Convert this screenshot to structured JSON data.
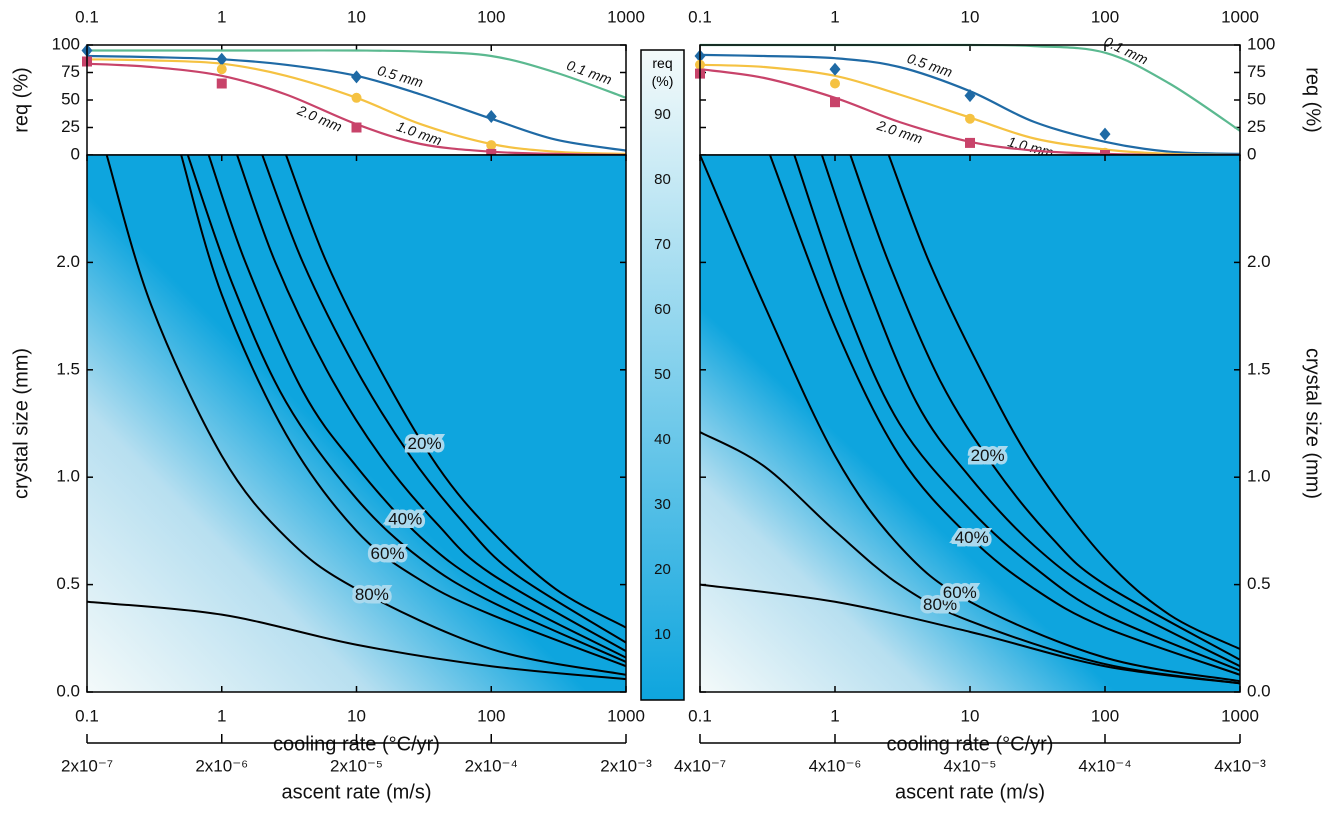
{
  "chart_data": [
    {
      "type": "line",
      "x_log": true,
      "xlim": [
        0.1,
        1000
      ],
      "xticks": [
        0.1,
        1,
        10,
        100,
        1000
      ],
      "ylabel": "req (%)",
      "ylim": [
        0,
        100
      ],
      "yticks": [
        0,
        25,
        50,
        75,
        100
      ],
      "x": [
        0.1,
        0.3,
        1,
        3,
        10,
        30,
        100,
        300,
        1000
      ],
      "point_x": [
        0.1,
        1,
        10,
        100
      ],
      "series": [
        {
          "name": "0.1 mm",
          "color": "#5bb990",
          "values": [
            95,
            95,
            95,
            95,
            95,
            94,
            90,
            75,
            52
          ]
        },
        {
          "name": "0.5 mm",
          "color": "#1f6aa5",
          "marker": "diamond",
          "values": [
            90,
            89,
            87,
            82,
            72,
            55,
            33,
            14,
            4
          ],
          "point_values": [
            95,
            87,
            71,
            35
          ]
        },
        {
          "name": "1.0 mm",
          "color": "#f5c242",
          "marker": "circle",
          "values": [
            87,
            86,
            83,
            72,
            52,
            28,
            10,
            3,
            1
          ],
          "point_values": [
            85,
            78,
            52,
            9
          ]
        },
        {
          "name": "2.0 mm",
          "color": "#c8436a",
          "marker": "square",
          "values": [
            83,
            80,
            72,
            55,
            28,
            10,
            3,
            1,
            0
          ],
          "point_values": [
            85,
            65,
            25,
            1
          ]
        }
      ]
    },
    {
      "type": "contour",
      "x_log": true,
      "xlabel": "cooling rate (°C/yr)",
      "xlim": [
        0.1,
        1000
      ],
      "xticks": [
        0.1,
        1,
        10,
        100,
        1000
      ],
      "ylabel": "crystal size (mm)",
      "ylim": [
        0,
        2.5
      ],
      "yticks": [
        {
          "value": 0,
          "label": "0.0"
        },
        0.5,
        {
          "value": 1,
          "label": "1.0"
        },
        1.5,
        {
          "value": 2,
          "label": "2.0"
        }
      ],
      "x2label": "ascent rate (m/s)",
      "x2lim": [
        2e-07,
        0.002
      ],
      "x2ticks": [
        {
          "value": 2e-07,
          "label": "2x10⁻⁷"
        },
        {
          "value": 2e-06,
          "label": "2x10⁻⁶"
        },
        {
          "value": 2e-05,
          "label": "2x10⁻⁵"
        },
        {
          "value": 0.0002,
          "label": "2x10⁻⁴"
        },
        {
          "value": 0.002,
          "label": "2x10⁻³"
        }
      ],
      "contours": [
        {
          "x": [
            0.1,
            1,
            10,
            100,
            1000
          ],
          "y": [
            0.42,
            0.36,
            0.22,
            0.12,
            0.06
          ]
        },
        {
          "label": "80%",
          "x": [
            0.14,
            0.3,
            1,
            3,
            10,
            100,
            1000
          ],
          "y": [
            2.5,
            1.8,
            1.1,
            0.72,
            0.48,
            0.2,
            0.08
          ]
        },
        {
          "label": "60%",
          "x": [
            0.5,
            1,
            3,
            10,
            30,
            100,
            1000
          ],
          "y": [
            2.5,
            1.85,
            1.2,
            0.75,
            0.52,
            0.36,
            0.12
          ]
        },
        {
          "x": [
            0.56,
            1.2,
            3,
            10,
            30,
            100,
            1000
          ],
          "y": [
            2.5,
            1.9,
            1.35,
            0.9,
            0.62,
            0.42,
            0.14
          ]
        },
        {
          "label": "40%",
          "x": [
            0.8,
            1.5,
            4,
            10,
            30,
            100,
            1000
          ],
          "y": [
            2.5,
            2.0,
            1.4,
            1.05,
            0.72,
            0.48,
            0.16
          ]
        },
        {
          "x": [
            1.3,
            2.5,
            6,
            15,
            40,
            100,
            1000
          ],
          "y": [
            2.5,
            2.0,
            1.5,
            1.1,
            0.78,
            0.55,
            0.19
          ]
        },
        {
          "x": [
            2,
            4,
            10,
            25,
            60,
            150,
            1000
          ],
          "y": [
            2.5,
            2.0,
            1.5,
            1.1,
            0.8,
            0.55,
            0.23
          ]
        },
        {
          "label": "20%",
          "x": [
            3,
            6,
            15,
            40,
            100,
            300,
            1000
          ],
          "y": [
            2.5,
            2.0,
            1.5,
            1.05,
            0.75,
            0.48,
            0.3
          ]
        }
      ]
    },
    {
      "type": "line",
      "x_log": true,
      "xlim": [
        0.1,
        1000
      ],
      "xticks": [
        0.1,
        1,
        10,
        100,
        1000
      ],
      "ylabel": "req (%)",
      "ylim": [
        0,
        100
      ],
      "yticks": [
        0,
        25,
        50,
        75,
        100
      ],
      "x": [
        0.1,
        0.3,
        1,
        3,
        10,
        30,
        100,
        300,
        1000
      ],
      "point_x": [
        0.1,
        1,
        10,
        100
      ],
      "series": [
        {
          "name": "0.1 mm",
          "color": "#5bb990",
          "values": [
            100,
            100,
            100,
            100,
            100,
            99,
            93,
            65,
            22
          ]
        },
        {
          "name": "0.5 mm",
          "color": "#1f6aa5",
          "marker": "diamond",
          "values": [
            91,
            90,
            88,
            80,
            58,
            30,
            12,
            3,
            1
          ],
          "point_values": [
            90,
            78,
            54,
            19
          ]
        },
        {
          "name": "1.0 mm",
          "color": "#f5c242",
          "marker": "circle",
          "values": [
            82,
            80,
            72,
            55,
            34,
            15,
            5,
            1,
            0
          ],
          "point_values": [
            82,
            65,
            33,
            2
          ]
        },
        {
          "name": "2.0 mm",
          "color": "#c8436a",
          "marker": "square",
          "values": [
            78,
            70,
            52,
            30,
            12,
            4,
            1,
            0,
            0
          ],
          "point_values": [
            74,
            48,
            11,
            0
          ]
        }
      ]
    },
    {
      "type": "contour",
      "x_log": true,
      "xlabel": "cooling rate (°C/yr)",
      "xlim": [
        0.1,
        1000
      ],
      "xticks": [
        0.1,
        1,
        10,
        100,
        1000
      ],
      "ylabel": "crystal size (mm)",
      "ylim": [
        0,
        2.5
      ],
      "yticks": [
        {
          "value": 0,
          "label": "0.0"
        },
        0.5,
        {
          "value": 1,
          "label": "1.0"
        },
        1.5,
        {
          "value": 2,
          "label": "2.0"
        }
      ],
      "x2label": "ascent rate (m/s)",
      "x2lim": [
        4e-07,
        0.004
      ],
      "x2ticks": [
        {
          "value": 4e-07,
          "label": "4x10⁻⁷"
        },
        {
          "value": 4e-06,
          "label": "4x10⁻⁶"
        },
        {
          "value": 4e-05,
          "label": "4x10⁻⁵"
        },
        {
          "value": 0.0004,
          "label": "4x10⁻⁴"
        },
        {
          "value": 0.004,
          "label": "4x10⁻³"
        }
      ],
      "contours": [
        {
          "x": [
            0.1,
            1,
            10,
            100,
            1000
          ],
          "y": [
            0.5,
            0.42,
            0.28,
            0.12,
            0.04
          ]
        },
        {
          "label": "80%",
          "x": [
            0.1,
            0.3,
            1,
            3,
            10,
            100,
            1000
          ],
          "y": [
            1.21,
            1.05,
            0.75,
            0.5,
            0.33,
            0.13,
            0.04
          ]
        },
        {
          "label": "60%",
          "x": [
            0.1,
            0.3,
            1,
            3,
            10,
            100,
            1000
          ],
          "y": [
            2.5,
            1.8,
            1.1,
            0.68,
            0.42,
            0.16,
            0.05
          ]
        },
        {
          "label": "40%",
          "x": [
            0.33,
            1,
            3,
            10,
            30,
            100,
            1000
          ],
          "y": [
            2.5,
            1.7,
            1.1,
            0.72,
            0.48,
            0.3,
            0.08
          ]
        },
        {
          "x": [
            0.5,
            1.2,
            3,
            10,
            30,
            100,
            1000
          ],
          "y": [
            2.5,
            1.8,
            1.25,
            0.85,
            0.58,
            0.36,
            0.1
          ]
        },
        {
          "x": [
            0.8,
            1.6,
            4,
            10,
            30,
            100,
            1000
          ],
          "y": [
            2.5,
            1.95,
            1.35,
            1.0,
            0.68,
            0.44,
            0.12
          ]
        },
        {
          "label": "20%",
          "x": [
            1.3,
            2.5,
            6,
            15,
            40,
            100,
            1000
          ],
          "y": [
            2.5,
            2.0,
            1.45,
            1.05,
            0.72,
            0.5,
            0.15
          ]
        },
        {
          "x": [
            2.5,
            5,
            12,
            30,
            100,
            300,
            1000
          ],
          "y": [
            2.5,
            2.0,
            1.5,
            1.05,
            0.62,
            0.36,
            0.2
          ]
        }
      ]
    },
    {
      "type": "colorbar",
      "title": "req (%)",
      "ylim": [
        0,
        100
      ],
      "yticks": [
        10,
        20,
        30,
        40,
        50,
        60,
        70,
        80,
        90
      ],
      "colors": [
        "#0ea5de",
        "#f4fafa"
      ]
    }
  ]
}
